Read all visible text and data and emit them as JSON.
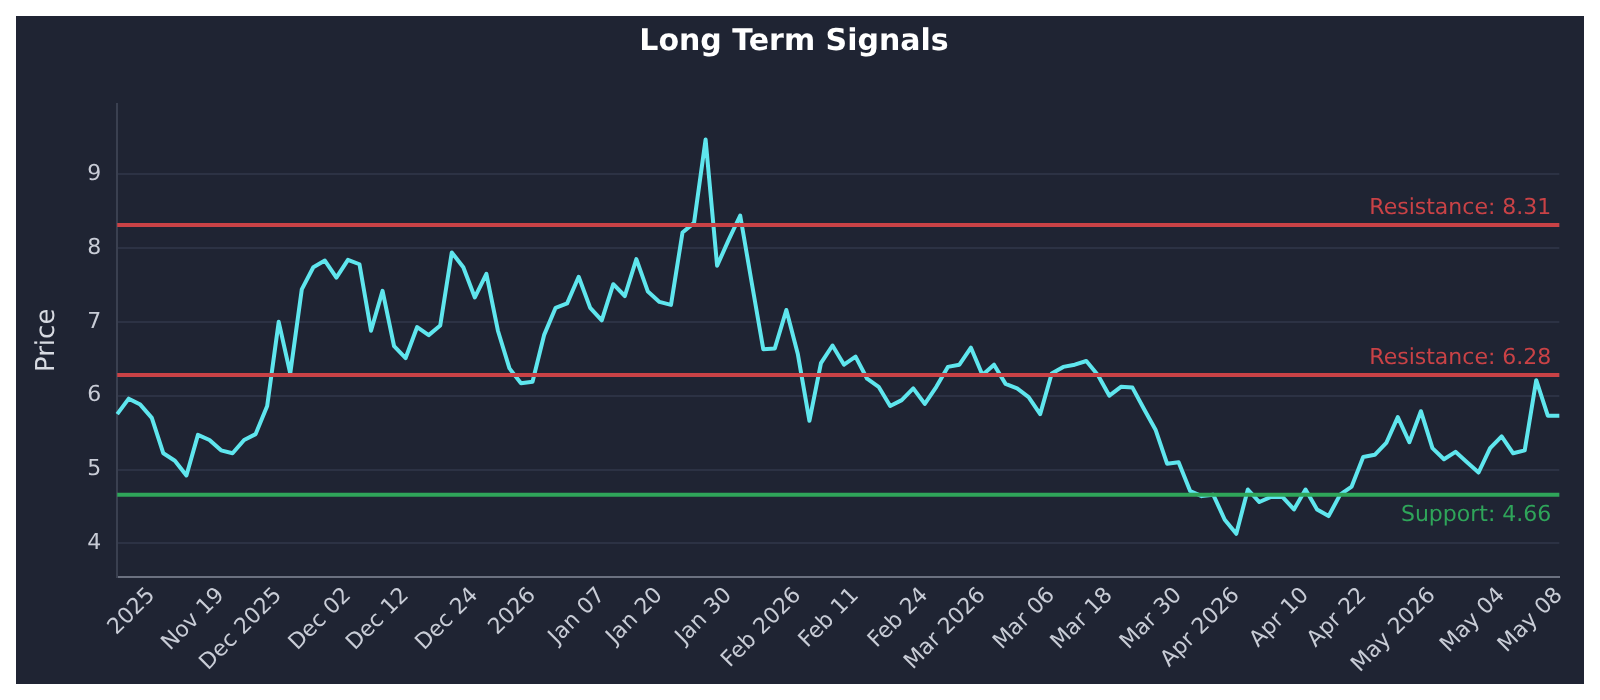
{
  "chart_data": {
    "type": "line",
    "title": "Long Term Signals",
    "ylabel": "Price",
    "categories": [
      null,
      null,
      null,
      "2025",
      null,
      null,
      null,
      null,
      null,
      "Nov 19",
      null,
      null,
      null,
      null,
      "Dec 2025",
      null,
      null,
      null,
      null,
      null,
      "Dec 02",
      null,
      null,
      null,
      null,
      "Dec 12",
      null,
      null,
      null,
      null,
      null,
      "Dec 24",
      null,
      null,
      null,
      null,
      "2026",
      null,
      null,
      null,
      null,
      null,
      "Jan 07",
      null,
      null,
      null,
      null,
      "Jan 20",
      null,
      null,
      null,
      null,
      null,
      "Jan 30",
      null,
      null,
      null,
      null,
      null,
      "Feb 2026",
      null,
      null,
      null,
      null,
      "Feb 11",
      null,
      null,
      null,
      null,
      null,
      "Feb 24",
      null,
      null,
      null,
      null,
      "Mar 2026",
      null,
      null,
      null,
      null,
      null,
      "Mar 06",
      null,
      null,
      null,
      null,
      "Mar 18",
      null,
      null,
      null,
      null,
      null,
      "Mar 30",
      null,
      null,
      null,
      null,
      "Apr 2026",
      null,
      null,
      null,
      null,
      null,
      "Apr 10",
      null,
      null,
      null,
      null,
      "Apr 22",
      null,
      null,
      null,
      null,
      null,
      "May 2026",
      null,
      null,
      null,
      null,
      null,
      "May 04",
      null,
      null,
      null,
      null,
      "May 08"
    ],
    "series": [
      {
        "color": "#5fe6ee",
        "values": [
          5.75,
          5.96,
          5.88,
          5.7,
          5.22,
          5.12,
          4.92,
          5.47,
          5.4,
          5.26,
          5.22,
          5.4,
          5.48,
          5.86,
          7.0,
          6.3,
          7.44,
          7.74,
          7.83,
          7.6,
          7.84,
          7.78,
          6.88,
          7.42,
          6.67,
          6.51,
          6.93,
          6.82,
          6.95,
          7.94,
          7.74,
          7.33,
          7.65,
          6.88,
          6.37,
          6.17,
          6.19,
          6.82,
          7.19,
          7.25,
          7.61,
          7.19,
          7.02,
          7.51,
          7.35,
          7.85,
          7.41,
          7.27,
          7.23,
          8.21,
          8.34,
          9.47,
          7.76,
          8.11,
          8.44,
          7.53,
          6.63,
          6.64,
          7.16,
          6.56,
          5.66,
          6.44,
          6.68,
          6.42,
          6.53,
          6.23,
          6.12,
          5.86,
          5.94,
          6.1,
          5.89,
          6.12,
          6.39,
          6.42,
          6.65,
          6.28,
          6.42,
          6.16,
          6.1,
          5.98,
          5.75,
          6.3,
          6.39,
          6.42,
          6.47,
          6.28,
          6.0,
          6.12,
          6.11,
          5.82,
          5.54,
          5.08,
          5.1,
          4.71,
          4.64,
          4.66,
          4.32,
          4.13,
          4.73,
          4.56,
          4.63,
          4.63,
          4.46,
          4.73,
          4.46,
          4.37,
          4.66,
          4.77,
          5.17,
          5.2,
          5.36,
          5.71,
          5.37,
          5.79,
          5.29,
          5.14,
          5.24,
          5.1,
          4.96,
          5.29,
          5.45,
          5.22,
          5.26,
          6.21,
          5.73,
          5.73
        ]
      }
    ],
    "ylim": [
      3.55,
      9.95
    ],
    "yticks": [
      4,
      5,
      6,
      7,
      8,
      9
    ],
    "grid": "y",
    "marker": "none",
    "line_style": "solid",
    "ref_lines": [
      {
        "axis": "y",
        "value": 8.31,
        "label": "Resistance: 8.31",
        "color": "#c94246"
      },
      {
        "axis": "y",
        "value": 6.28,
        "label": "Resistance: 6.28",
        "color": "#c94246"
      },
      {
        "axis": "y",
        "value": 4.66,
        "label": "Support: 4.66",
        "color": "#2fa55a"
      }
    ]
  }
}
